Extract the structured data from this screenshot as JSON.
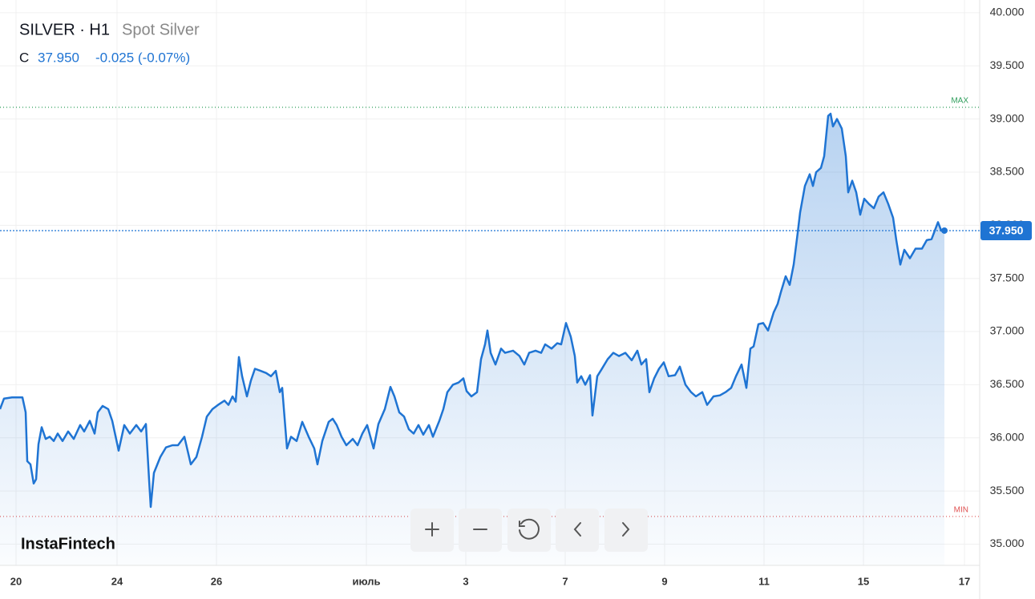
{
  "chart_data": {
    "type": "area",
    "symbol": "SILVER · H1",
    "name": "Spot Silver",
    "ohlc_prefix": "C",
    "close": "37.950",
    "change": "-0.025 (-0.07%)",
    "brand": "InstaFintech",
    "color": "#1f74d3",
    "grid": true,
    "x": [
      0,
      5,
      15,
      28,
      32,
      34,
      38,
      42,
      45,
      48,
      52,
      57,
      62,
      67,
      72,
      78,
      85,
      92,
      100,
      105,
      112,
      118,
      122,
      128,
      135,
      140,
      148,
      155,
      162,
      170,
      176,
      182,
      186,
      188,
      192,
      200,
      207,
      215,
      222,
      230,
      238,
      245,
      252,
      258,
      265,
      272,
      280,
      285,
      290,
      294,
      298,
      302,
      308,
      313,
      318,
      325,
      332,
      338,
      344,
      349,
      352,
      358,
      363,
      370,
      377,
      385,
      392,
      396,
      402,
      410,
      415,
      420,
      426,
      432,
      440,
      446,
      452,
      458,
      462,
      466,
      472,
      480,
      487,
      492,
      498,
      504,
      510,
      516,
      522,
      528,
      535,
      540,
      548,
      553,
      558,
      565,
      572,
      578,
      582,
      588,
      595,
      600,
      605,
      608,
      612,
      618,
      625,
      630,
      640,
      648,
      654,
      660,
      668,
      675,
      680,
      688,
      695,
      700,
      706,
      712,
      717,
      720,
      725,
      730,
      736,
      739,
      745,
      750,
      758,
      765,
      772,
      780,
      788,
      795,
      800,
      806,
      810,
      816,
      822,
      828,
      834,
      842,
      848,
      855,
      862,
      868,
      876,
      882,
      890,
      898,
      905,
      912,
      918,
      925,
      931,
      936,
      940,
      946,
      952,
      958,
      965,
      970,
      974,
      980,
      985,
      990,
      995,
      998,
      1004,
      1010,
      1014,
      1018,
      1024,
      1028,
      1033,
      1036,
      1039,
      1044,
      1050,
      1055,
      1058,
      1063,
      1068,
      1073,
      1078,
      1084,
      1090,
      1096,
      1102,
      1108,
      1114,
      1118,
      1123,
      1128,
      1135,
      1142,
      1150,
      1156,
      1162,
      1166,
      1170,
      1174,
      1178
    ],
    "values": [
      36.27,
      36.37,
      36.38,
      36.38,
      36.24,
      35.78,
      35.75,
      35.57,
      35.61,
      35.94,
      36.1,
      35.99,
      36.01,
      35.97,
      36.04,
      35.97,
      36.06,
      35.99,
      36.12,
      36.06,
      36.16,
      36.04,
      36.24,
      36.3,
      36.27,
      36.16,
      35.88,
      36.12,
      36.04,
      36.12,
      36.06,
      36.13,
      35.6,
      35.35,
      35.67,
      35.82,
      35.91,
      35.93,
      35.93,
      36.01,
      35.75,
      35.82,
      36.01,
      36.2,
      36.27,
      36.31,
      36.35,
      36.31,
      36.39,
      36.34,
      36.76,
      36.58,
      36.39,
      36.54,
      36.65,
      36.63,
      36.61,
      36.58,
      36.63,
      36.43,
      36.47,
      35.9,
      36.01,
      35.97,
      36.15,
      36.01,
      35.9,
      35.75,
      35.97,
      36.15,
      36.18,
      36.12,
      36.01,
      35.93,
      35.99,
      35.93,
      36.04,
      36.12,
      36.01,
      35.9,
      36.13,
      36.27,
      36.48,
      36.39,
      36.24,
      36.2,
      36.08,
      36.04,
      36.12,
      36.03,
      36.12,
      36.01,
      36.16,
      36.27,
      36.43,
      36.5,
      36.52,
      36.56,
      36.44,
      36.39,
      36.43,
      36.74,
      36.88,
      37.01,
      36.8,
      36.69,
      36.84,
      36.8,
      36.82,
      36.77,
      36.69,
      36.8,
      36.82,
      36.8,
      36.88,
      36.84,
      36.89,
      36.88,
      37.08,
      36.95,
      36.77,
      36.52,
      36.58,
      36.5,
      36.59,
      36.21,
      36.58,
      36.64,
      36.74,
      36.8,
      36.77,
      36.8,
      36.73,
      36.82,
      36.69,
      36.74,
      36.43,
      36.56,
      36.65,
      36.71,
      36.58,
      36.59,
      36.67,
      36.5,
      36.43,
      36.39,
      36.43,
      36.31,
      36.39,
      36.4,
      36.43,
      36.47,
      36.58,
      36.69,
      36.47,
      36.84,
      36.86,
      37.07,
      37.08,
      37.01,
      37.18,
      37.26,
      37.37,
      37.52,
      37.44,
      37.63,
      37.93,
      38.12,
      38.37,
      38.48,
      38.37,
      38.5,
      38.54,
      38.65,
      39.03,
      39.05,
      38.93,
      39.0,
      38.91,
      38.65,
      38.31,
      38.42,
      38.31,
      38.1,
      38.25,
      38.2,
      38.16,
      38.27,
      38.31,
      38.2,
      38.07,
      37.86,
      37.63,
      37.77,
      37.69,
      37.78,
      37.78,
      37.86,
      37.87,
      37.95,
      38.03,
      37.95,
      37.95
    ],
    "xlim": [
      0,
      1222
    ],
    "xticks": [
      20,
      {
        "value": 146,
        "label": "24"
      },
      {
        "value": 270,
        "label": "26"
      },
      {
        "value": 457,
        "label": "июль"
      },
      {
        "value": 581,
        "label": "3"
      },
      {
        "value": 705,
        "label": "7"
      },
      {
        "value": 829,
        "label": "9"
      },
      {
        "value": 953,
        "label": "11"
      },
      {
        "value": 1077,
        "label": "15"
      },
      {
        "value": 1203,
        "label": "17"
      }
    ],
    "ylim": [
      34.8,
      40.12
    ],
    "yticks": [
      {
        "value": 35,
        "label": "35.000"
      },
      {
        "value": 35.5,
        "label": "35.500"
      },
      {
        "value": 36,
        "label": "36.000"
      },
      {
        "value": 36.5,
        "label": "36.500"
      },
      {
        "value": 37,
        "label": "37.000"
      },
      {
        "value": 37.5,
        "label": "37.500"
      },
      {
        "value": 38,
        "label": "38.000"
      },
      {
        "value": 38.5,
        "label": "38.500"
      },
      {
        "value": 39,
        "label": "39.000"
      },
      {
        "value": 39.5,
        "label": "39.500"
      },
      {
        "value": 40,
        "label": "40.000"
      }
    ],
    "max_line": {
      "value": 39.11,
      "label": "MAX",
      "color": "#2e9e5b"
    },
    "min_line": {
      "value": 35.26,
      "label": "MIN",
      "color": "#e05252"
    },
    "current": {
      "value": 37.95,
      "label": "37.950"
    }
  }
}
